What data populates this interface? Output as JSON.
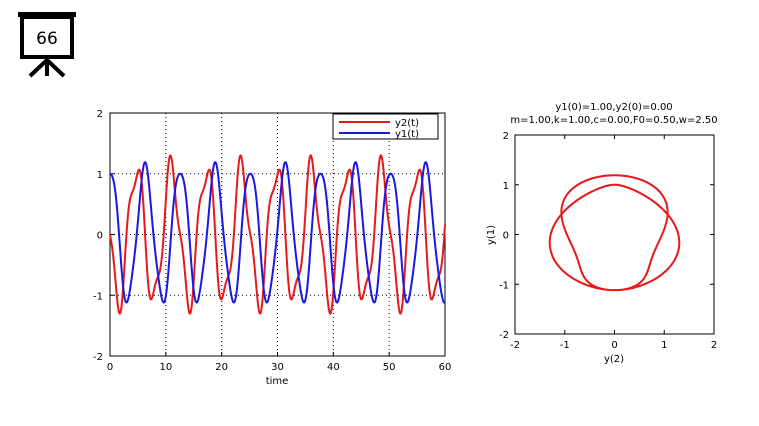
{
  "slide": {
    "number": "66"
  },
  "chart_data": [
    {
      "type": "line",
      "title": "",
      "xlabel": "time",
      "ylabel": "",
      "xlim": [
        0,
        60
      ],
      "ylim": [
        -2,
        2
      ],
      "xticks": [
        0,
        10,
        20,
        30,
        40,
        50,
        60
      ],
      "yticks": [
        -2,
        -1,
        0,
        1,
        2
      ],
      "grid": true,
      "legend_position": "top-right",
      "series": [
        {
          "name": "y2(t)",
          "color": "#e8191b"
        },
        {
          "name": "y1(t)",
          "color": "#1919e0"
        }
      ],
      "model": {
        "y1_0": 1.0,
        "y2_0": 0.0,
        "m": 1.0,
        "k": 1.0,
        "c": 0.0,
        "F0": 0.5,
        "w": 2.5
      }
    },
    {
      "type": "line",
      "title": "y1(0)=1.00,y2(0)=0.00",
      "subtitle": "m=1.00,k=1.00,c=0.00,F0=0.50,w=2.50",
      "xlabel": "y(2)",
      "ylabel": "y(1)",
      "xlim": [
        -2,
        2
      ],
      "ylim": [
        -2,
        2
      ],
      "xticks": [
        -2,
        -1,
        0,
        1,
        2
      ],
      "yticks": [
        -2,
        -1,
        0,
        1,
        2
      ],
      "grid": false,
      "series": [
        {
          "color": "#e8191b"
        }
      ]
    }
  ]
}
